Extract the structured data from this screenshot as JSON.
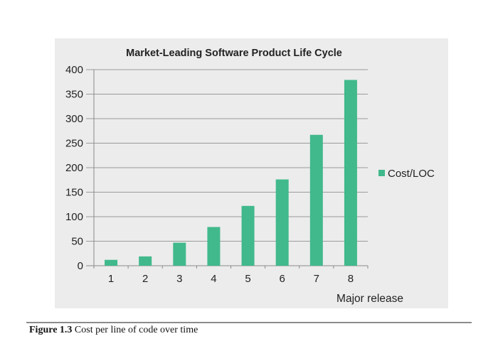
{
  "chart_data": {
    "type": "bar",
    "title": "Market-Leading Software Product Life Cycle",
    "xlabel": "Major release",
    "ylabel": "",
    "categories": [
      "1",
      "2",
      "3",
      "4",
      "5",
      "6",
      "7",
      "8"
    ],
    "series": [
      {
        "name": "Cost/LOC",
        "values": [
          12,
          19,
          47,
          79,
          122,
          176,
          267,
          379
        ],
        "color": "#41b98c"
      }
    ],
    "yticks": [
      0,
      50,
      100,
      150,
      200,
      250,
      300,
      350,
      400
    ],
    "ylim": [
      0,
      400
    ],
    "grid": true,
    "legend_position": "right"
  },
  "caption": {
    "figure_label": "Figure 1.3",
    "text": " Cost per line of code over time"
  }
}
